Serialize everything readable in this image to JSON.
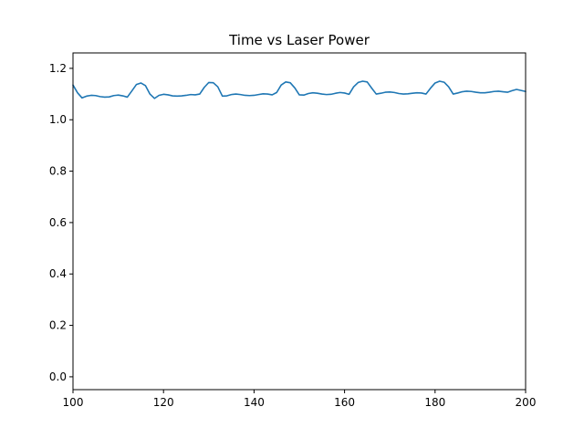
{
  "chart_data": {
    "type": "line",
    "title": "Time vs Laser Power",
    "xlabel": "",
    "ylabel": "",
    "xlim": [
      100,
      200
    ],
    "ylim": [
      -0.05,
      1.26
    ],
    "xticks": [
      100,
      120,
      140,
      160,
      180,
      200
    ],
    "xtick_labels": [
      "100",
      "120",
      "140",
      "160",
      "180",
      "200"
    ],
    "yticks": [
      0.0,
      0.2,
      0.4,
      0.6,
      0.8,
      1.0,
      1.2
    ],
    "ytick_labels": [
      "0.0",
      "0.2",
      "0.4",
      "0.6",
      "0.8",
      "1.0",
      "1.2"
    ],
    "grid": false,
    "series": [
      {
        "color": "#1f77b4",
        "x": [
          100,
          101,
          102,
          103,
          104,
          105,
          106,
          107,
          108,
          109,
          110,
          111,
          112,
          113,
          114,
          115,
          116,
          117,
          118,
          119,
          120,
          121,
          122,
          123,
          124,
          125,
          126,
          127,
          128,
          129,
          130,
          131,
          132,
          133,
          134,
          135,
          136,
          137,
          138,
          139,
          140,
          141,
          142,
          143,
          144,
          145,
          146,
          147,
          148,
          149,
          150,
          151,
          152,
          153,
          154,
          155,
          156,
          157,
          158,
          159,
          160,
          161,
          162,
          163,
          164,
          165,
          166,
          167,
          168,
          169,
          170,
          171,
          172,
          173,
          174,
          175,
          176,
          177,
          178,
          179,
          180,
          181,
          182,
          183,
          184,
          185,
          186,
          187,
          188,
          189,
          190,
          191,
          192,
          193,
          194,
          195,
          196,
          197,
          198,
          199,
          200
        ],
        "y": [
          1.135,
          1.105,
          1.085,
          1.092,
          1.095,
          1.094,
          1.09,
          1.088,
          1.089,
          1.094,
          1.096,
          1.093,
          1.088,
          1.112,
          1.137,
          1.143,
          1.133,
          1.1,
          1.083,
          1.095,
          1.099,
          1.097,
          1.093,
          1.092,
          1.093,
          1.095,
          1.098,
          1.097,
          1.1,
          1.126,
          1.145,
          1.144,
          1.128,
          1.092,
          1.093,
          1.098,
          1.1,
          1.098,
          1.095,
          1.094,
          1.095,
          1.098,
          1.101,
          1.1,
          1.097,
          1.106,
          1.135,
          1.147,
          1.144,
          1.124,
          1.097,
          1.096,
          1.102,
          1.105,
          1.103,
          1.1,
          1.098,
          1.099,
          1.103,
          1.106,
          1.104,
          1.099,
          1.128,
          1.145,
          1.15,
          1.147,
          1.123,
          1.1,
          1.103,
          1.107,
          1.108,
          1.106,
          1.102,
          1.1,
          1.101,
          1.103,
          1.105,
          1.104,
          1.1,
          1.123,
          1.143,
          1.15,
          1.146,
          1.128,
          1.1,
          1.104,
          1.109,
          1.111,
          1.11,
          1.107,
          1.105,
          1.105,
          1.107,
          1.11,
          1.111,
          1.109,
          1.107,
          1.113,
          1.118,
          1.114,
          1.11
        ]
      }
    ]
  }
}
